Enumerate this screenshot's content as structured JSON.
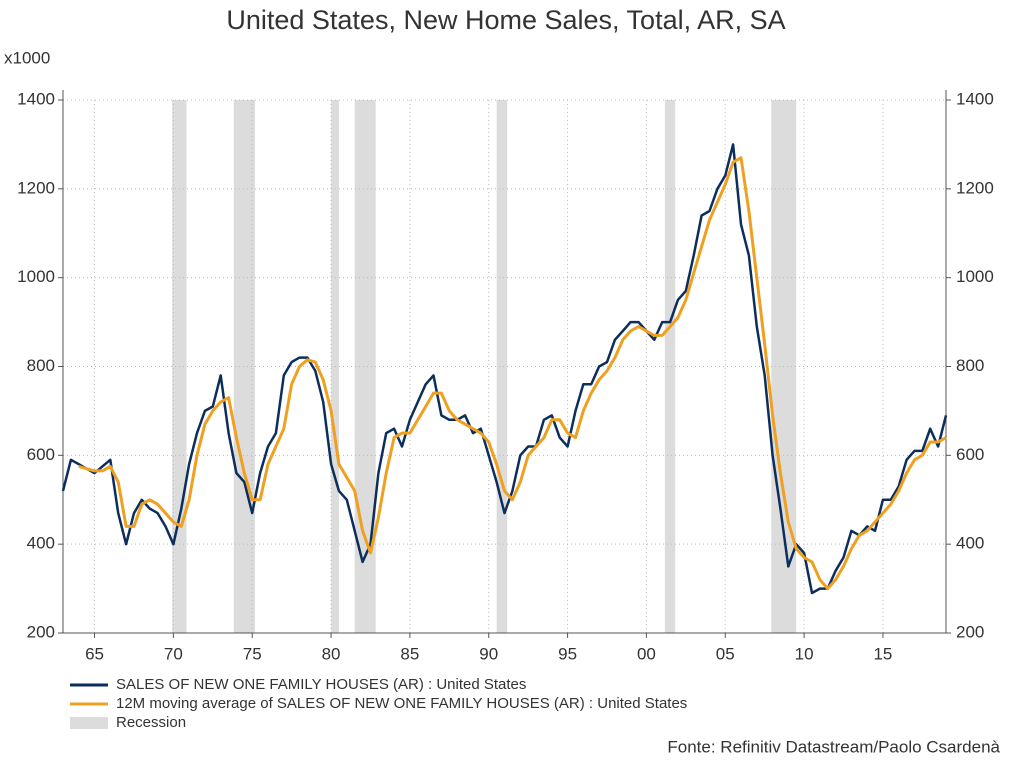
{
  "chart_data": {
    "type": "line",
    "title": "United States, New Home Sales, Total, AR, SA",
    "y_unit_label": "x1000",
    "source": "Fonte: Refinitiv Datastream/Paolo Csardenà",
    "x": [
      1963,
      1963.5,
      1964,
      1964.5,
      1965,
      1965.5,
      1966,
      1966.5,
      1967,
      1967.5,
      1968,
      1968.5,
      1969,
      1969.5,
      1970,
      1970.5,
      1971,
      1971.5,
      1972,
      1972.5,
      1973,
      1973.5,
      1974,
      1974.5,
      1975,
      1975.5,
      1976,
      1976.5,
      1977,
      1977.5,
      1978,
      1978.5,
      1979,
      1979.5,
      1980,
      1980.5,
      1981,
      1981.5,
      1982,
      1982.5,
      1983,
      1983.5,
      1984,
      1984.5,
      1985,
      1985.5,
      1986,
      1986.5,
      1987,
      1987.5,
      1988,
      1988.5,
      1989,
      1989.5,
      1990,
      1990.5,
      1991,
      1991.5,
      1992,
      1992.5,
      1993,
      1993.5,
      1994,
      1994.5,
      1995,
      1995.5,
      1996,
      1996.5,
      1997,
      1997.5,
      1998,
      1998.5,
      1999,
      1999.5,
      2000,
      2000.5,
      2001,
      2001.5,
      2002,
      2002.5,
      2003,
      2003.5,
      2004,
      2004.5,
      2005,
      2005.5,
      2006,
      2006.5,
      2007,
      2007.5,
      2008,
      2008.5,
      2009,
      2009.5,
      2010,
      2010.5,
      2011,
      2011.5,
      2012,
      2012.5,
      2013,
      2013.5,
      2014,
      2014.5,
      2015,
      2015.5,
      2016,
      2016.5,
      2017,
      2017.5,
      2018,
      2018.5,
      2019
    ],
    "series": [
      {
        "name": "SALES OF NEW ONE FAMILY HOUSES (AR) : United States",
        "color": "#0c2e5c",
        "values": [
          520,
          590,
          580,
          570,
          560,
          575,
          590,
          470,
          400,
          470,
          500,
          480,
          470,
          440,
          400,
          480,
          580,
          650,
          700,
          710,
          780,
          650,
          560,
          540,
          470,
          560,
          620,
          650,
          780,
          810,
          820,
          820,
          790,
          720,
          580,
          520,
          500,
          430,
          360,
          400,
          560,
          650,
          660,
          620,
          680,
          720,
          760,
          780,
          690,
          680,
          680,
          690,
          650,
          660,
          600,
          540,
          470,
          520,
          600,
          620,
          620,
          680,
          690,
          640,
          620,
          700,
          760,
          760,
          800,
          810,
          860,
          880,
          900,
          900,
          880,
          860,
          900,
          900,
          950,
          970,
          1050,
          1140,
          1150,
          1200,
          1230,
          1300,
          1120,
          1050,
          890,
          780,
          600,
          480,
          350,
          400,
          380,
          290,
          300,
          300,
          340,
          370,
          430,
          420,
          440,
          430,
          500,
          500,
          530,
          590,
          610,
          610,
          660,
          620,
          690
        ]
      },
      {
        "name": "12M moving average of SALES OF NEW ONE FAMILY HOUSES (AR) : United States",
        "color": "#f0a020",
        "values": [
          null,
          null,
          575,
          570,
          565,
          565,
          575,
          540,
          440,
          440,
          490,
          500,
          490,
          470,
          450,
          440,
          500,
          600,
          670,
          700,
          720,
          730,
          640,
          560,
          500,
          500,
          580,
          620,
          660,
          760,
          800,
          815,
          810,
          770,
          700,
          580,
          550,
          520,
          430,
          380,
          460,
          560,
          640,
          650,
          650,
          680,
          710,
          740,
          740,
          700,
          680,
          670,
          660,
          650,
          630,
          580,
          520,
          500,
          540,
          600,
          620,
          640,
          680,
          680,
          650,
          640,
          700,
          740,
          770,
          790,
          820,
          860,
          880,
          890,
          880,
          870,
          870,
          890,
          910,
          950,
          1010,
          1070,
          1130,
          1170,
          1210,
          1260,
          1270,
          1150,
          1000,
          850,
          690,
          560,
          450,
          390,
          370,
          360,
          320,
          300,
          320,
          350,
          390,
          420,
          430,
          450,
          470,
          490,
          520,
          560,
          590,
          600,
          630,
          630,
          640
        ]
      }
    ],
    "recessions": {
      "name": "Recession",
      "color": "#dcdcdc",
      "periods": [
        [
          1969.92,
          1970.83
        ],
        [
          1973.83,
          1975.17
        ],
        [
          1980,
          1980.5
        ],
        [
          1981.5,
          1982.83
        ],
        [
          1990.5,
          1991.17
        ],
        [
          2001.17,
          2001.83
        ],
        [
          2007.92,
          2009.5
        ]
      ]
    },
    "xlim": [
      1963,
      2019
    ],
    "xticks": [
      {
        "value": 1965,
        "label": "65"
      },
      {
        "value": 1970,
        "label": "70"
      },
      {
        "value": 1975,
        "label": "75"
      },
      {
        "value": 1980,
        "label": "80"
      },
      {
        "value": 1985,
        "label": "85"
      },
      {
        "value": 1990,
        "label": "90"
      },
      {
        "value": 1995,
        "label": "95"
      },
      {
        "value": 2000,
        "label": "00"
      },
      {
        "value": 2005,
        "label": "05"
      },
      {
        "value": 2010,
        "label": "10"
      },
      {
        "value": 2015,
        "label": "15"
      }
    ],
    "ylim": [
      200,
      1400
    ],
    "yticks": [
      200,
      400,
      600,
      800,
      1000,
      1200,
      1400
    ],
    "grid": true,
    "legend": "bottom-left"
  }
}
